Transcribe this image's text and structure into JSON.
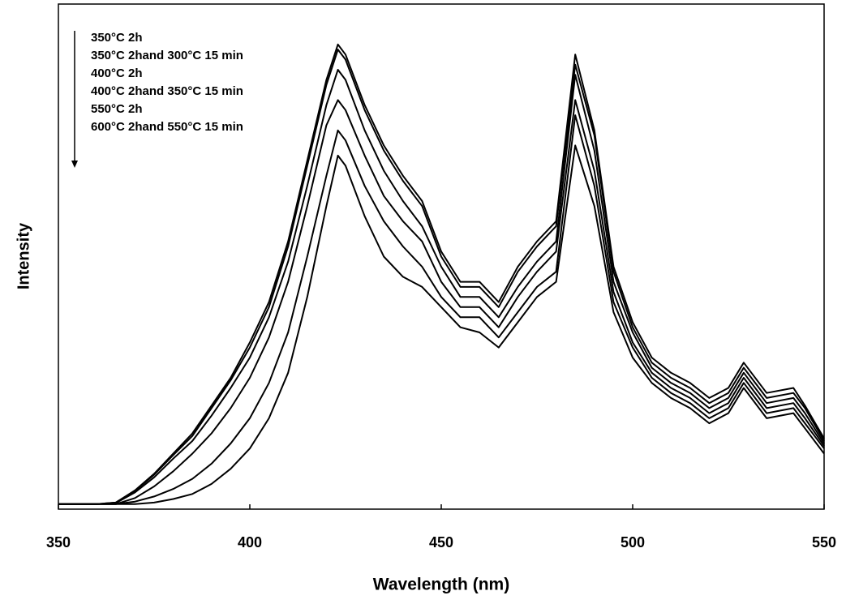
{
  "chart_data": {
    "type": "line",
    "x_label": "Wavelength (nm)",
    "y_label": "Intensity",
    "x": [
      350,
      355,
      360,
      365,
      370,
      375,
      380,
      385,
      390,
      395,
      400,
      405,
      410,
      415,
      420,
      423,
      425,
      430,
      435,
      440,
      445,
      450,
      455,
      460,
      465,
      470,
      475,
      480,
      485,
      490,
      495,
      500,
      505,
      510,
      515,
      520,
      525,
      529,
      535,
      542,
      545,
      550
    ],
    "series": [
      {
        "name": "350°C 2h",
        "color": "#000000",
        "values": [
          1,
          1,
          1,
          1.3,
          3.7,
          7,
          11,
          15,
          20.5,
          26,
          33,
          41,
          53,
          69,
          85,
          92,
          90,
          80,
          72,
          66,
          61,
          51,
          45,
          45,
          41,
          48,
          53,
          57,
          90,
          75,
          48,
          37,
          30,
          27,
          25,
          22,
          24,
          29,
          23,
          24,
          20.5,
          14
        ]
      },
      {
        "name": "350°C 2hand 300°C 15 min",
        "color": "#000000",
        "values": [
          1,
          1,
          1,
          1.3,
          3.6,
          6.8,
          10.7,
          14.5,
          20,
          25.5,
          32,
          40,
          52,
          68,
          84,
          91,
          89,
          79,
          71,
          65,
          60,
          50,
          44,
          44,
          40,
          47,
          52,
          56,
          88,
          74,
          47,
          36,
          29,
          26,
          24,
          21,
          23,
          28,
          22,
          23,
          20,
          13.5
        ]
      },
      {
        "name": "400°C 2h",
        "color": "#000000",
        "values": [
          1,
          1,
          1,
          1.2,
          3.3,
          6.3,
          10,
          13.5,
          18.5,
          24,
          30,
          38,
          49,
          64,
          80,
          87,
          85,
          75,
          67,
          61,
          56,
          48,
          42,
          42,
          38,
          44,
          49,
          53,
          86,
          71,
          45,
          35,
          28,
          25,
          23,
          20,
          22,
          27,
          21,
          22,
          19,
          13
        ]
      },
      {
        "name": "400°C 2hand 350°C 15 min",
        "color": "#000000",
        "values": [
          1,
          1,
          1,
          1,
          2.2,
          4.5,
          7.5,
          11,
          15,
          20,
          26,
          34,
          45,
          60,
          76,
          81,
          79,
          70,
          62,
          57,
          53,
          45,
          40,
          40,
          36,
          42,
          47,
          51,
          81,
          67,
          43,
          33,
          27,
          24,
          22,
          19,
          21,
          26,
          20,
          21,
          18,
          12.5
        ]
      },
      {
        "name": "550°C 2h",
        "color": "#000000",
        "values": [
          1,
          1,
          1,
          1,
          1.5,
          2.5,
          4,
          6,
          9,
          13,
          18,
          25,
          35,
          50,
          66,
          75,
          73,
          64,
          57,
          52,
          48,
          42,
          38,
          38,
          34,
          39,
          44,
          47,
          78,
          64,
          41,
          32,
          26,
          23,
          21,
          18,
          20,
          25,
          19,
          20,
          17,
          12
        ]
      },
      {
        "name": "600°C 2hand 550°C 15 min",
        "color": "#000000",
        "values": [
          1,
          1,
          1,
          1,
          1,
          1.3,
          2,
          3,
          5,
          8,
          12,
          18,
          27,
          42,
          60,
          70,
          68,
          58,
          50,
          46,
          44,
          40,
          36,
          35,
          32,
          37,
          42,
          45,
          72,
          60,
          39,
          30,
          25,
          22,
          20,
          17,
          19,
          24,
          18,
          19,
          16,
          11
        ]
      }
    ],
    "xlim": [
      350,
      550
    ],
    "xticks": [
      350,
      400,
      450,
      500,
      550
    ],
    "ylim": [
      0,
      100
    ]
  }
}
